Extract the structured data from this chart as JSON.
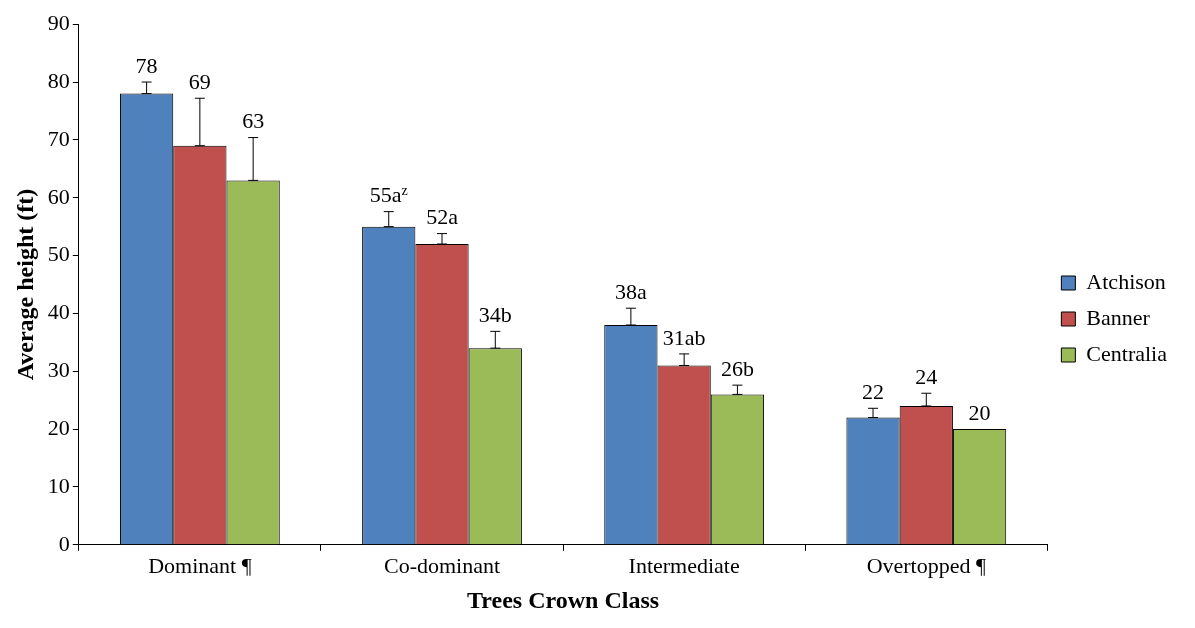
{
  "chart_data": {
    "type": "bar",
    "xlabel": "Trees Crown Class",
    "ylabel": "Average height (ft)",
    "categories": [
      "Dominant ¶",
      "Co-dominant",
      "Intermediate",
      "Overtopped ¶"
    ],
    "series": [
      {
        "name": "Atchison",
        "color": "#4f81bd",
        "values": [
          78,
          55,
          38,
          22
        ],
        "errors": [
          [
            78,
            80
          ],
          [
            55,
            57.6
          ],
          [
            38,
            40.9
          ],
          [
            22,
            23.6
          ]
        ],
        "value_labels": [
          "78",
          "55a$^{z}$",
          "38a",
          "22"
        ]
      },
      {
        "name": "Banner",
        "color": "#c0504d",
        "values": [
          69,
          52,
          31,
          24
        ],
        "errors": [
          [
            69,
            77.2
          ],
          [
            52,
            53.8
          ],
          [
            31,
            33
          ],
          [
            24,
            26.2
          ]
        ],
        "value_labels": [
          "69",
          "52a",
          "31ab",
          "24"
        ]
      },
      {
        "name": "Centralia",
        "color": "#9bbb59",
        "values": [
          63,
          34,
          26,
          20
        ],
        "errors": [
          [
            63,
            70.4
          ],
          [
            34,
            36.9
          ],
          [
            26,
            27.6
          ],
          null
        ],
        "value_labels": [
          "63",
          "34b",
          "26b",
          "20"
        ]
      }
    ],
    "ylim": [
      0,
      90
    ],
    "yticks": [
      0,
      10,
      20,
      30,
      40,
      50,
      60,
      70,
      80,
      90
    ],
    "grid": false,
    "legend": "right"
  }
}
